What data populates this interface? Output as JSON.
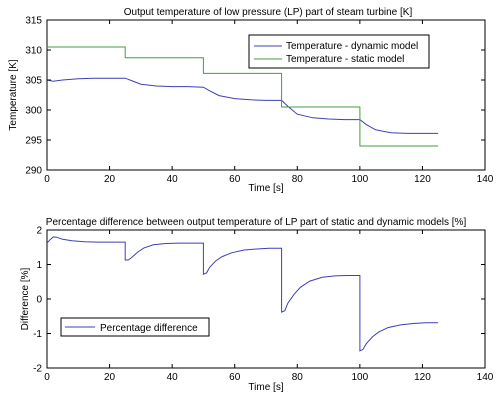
{
  "chart_data": [
    {
      "type": "line",
      "title": "Output temperature of low pressure (LP) part of steam turbine [K]",
      "xlabel": "Time [s]",
      "ylabel": "Temperature [K]",
      "xlim": [
        0,
        140
      ],
      "ylim": [
        290,
        315
      ],
      "xticks": [
        0,
        20,
        40,
        60,
        80,
        100,
        120,
        140
      ],
      "yticks": [
        290,
        295,
        300,
        305,
        310,
        315
      ],
      "grid": false,
      "legend_position": "top-right",
      "series": [
        {
          "name": "Temperature - dynamic model",
          "color": "#3f3fb8",
          "x": [
            0,
            2,
            5,
            10,
            15,
            20,
            25,
            27,
            30,
            35,
            40,
            45,
            50,
            52,
            55,
            60,
            65,
            70,
            75,
            77,
            80,
            85,
            90,
            95,
            100,
            102,
            105,
            110,
            115,
            120,
            125
          ],
          "y": [
            305.0,
            304.8,
            305.0,
            305.2,
            305.3,
            305.3,
            305.3,
            304.9,
            304.3,
            304.0,
            303.9,
            303.9,
            303.8,
            303.2,
            302.4,
            301.9,
            301.7,
            301.6,
            301.6,
            300.6,
            299.3,
            298.7,
            298.5,
            298.4,
            298.4,
            297.6,
            296.7,
            296.2,
            296.1,
            296.1,
            296.1
          ]
        },
        {
          "name": "Temperature - static model",
          "color": "#3f9f3f",
          "x": [
            0,
            25,
            25,
            50,
            50,
            75,
            75,
            100,
            100,
            125
          ],
          "y": [
            310.5,
            310.5,
            308.7,
            308.7,
            306.1,
            306.1,
            300.5,
            300.5,
            294.0,
            294.0
          ]
        }
      ]
    },
    {
      "type": "line",
      "title": "Percentage difference between output temperature of LP part of static and dynamic models [%]",
      "xlabel": "Time [s]",
      "ylabel": "Difference [%]",
      "xlim": [
        0,
        140
      ],
      "ylim": [
        -2,
        2
      ],
      "xticks": [
        0,
        20,
        40,
        60,
        80,
        100,
        120,
        140
      ],
      "yticks": [
        -2,
        -1,
        0,
        1,
        2
      ],
      "grid": false,
      "legend_position": "bottom-left",
      "series": [
        {
          "name": "Percentage difference",
          "color": "#3f3fb8",
          "x": [
            0,
            1,
            2,
            3,
            5,
            8,
            12,
            16,
            20,
            25,
            25,
            26,
            27,
            29,
            31,
            34,
            38,
            42,
            46,
            50,
            50,
            51,
            52,
            54,
            56,
            59,
            63,
            67,
            71,
            75,
            75,
            76,
            77,
            79,
            81,
            84,
            88,
            92,
            96,
            100,
            100,
            101,
            102,
            104,
            106,
            109,
            113,
            117,
            121,
            125
          ],
          "y": [
            1.62,
            1.72,
            1.8,
            1.79,
            1.73,
            1.69,
            1.66,
            1.65,
            1.65,
            1.65,
            1.13,
            1.13,
            1.2,
            1.36,
            1.48,
            1.57,
            1.61,
            1.62,
            1.62,
            1.62,
            0.72,
            0.76,
            0.92,
            1.11,
            1.23,
            1.34,
            1.42,
            1.45,
            1.47,
            1.47,
            -0.38,
            -0.34,
            -0.12,
            0.14,
            0.34,
            0.52,
            0.63,
            0.67,
            0.68,
            0.68,
            -1.5,
            -1.46,
            -1.3,
            -1.1,
            -0.96,
            -0.83,
            -0.75,
            -0.71,
            -0.69,
            -0.69
          ]
        }
      ]
    }
  ]
}
